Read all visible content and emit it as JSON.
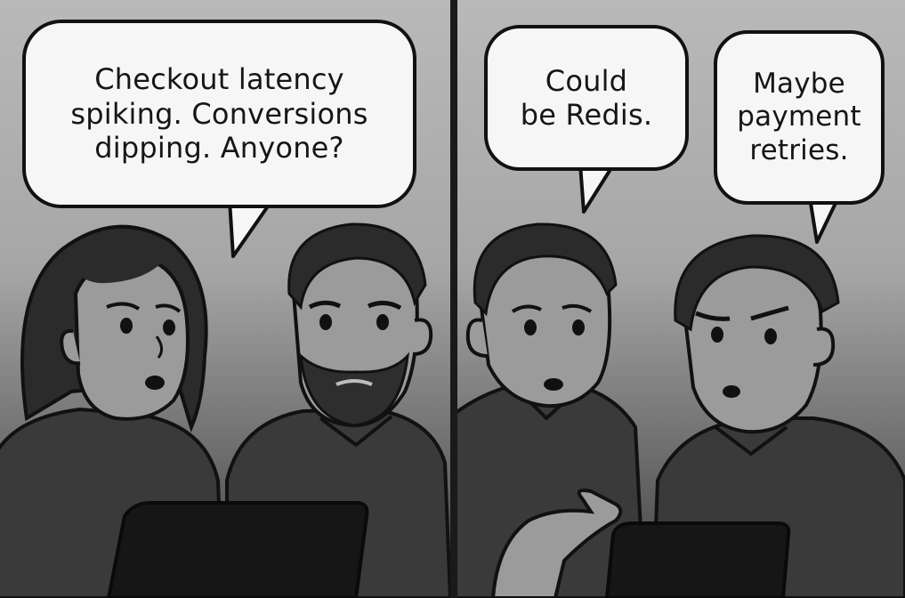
{
  "panels": [
    {
      "id": "panel-left",
      "speech": {
        "lines": [
          "Checkout latency",
          "spiking. Conversions",
          "dipping. Anyone?"
        ]
      }
    },
    {
      "id": "panel-right",
      "speech": [
        {
          "lines": [
            "Could",
            "be Redis."
          ]
        },
        {
          "lines": [
            "Maybe",
            "payment",
            "retries."
          ]
        }
      ]
    }
  ],
  "colors": {
    "ink": "#111111",
    "bubble_fill": "#f6f6f6",
    "background_light": "#b9b9b9",
    "shirt": "#3a3a3a",
    "skin": "#9b9b9b",
    "hair": "#2b2b2b"
  }
}
